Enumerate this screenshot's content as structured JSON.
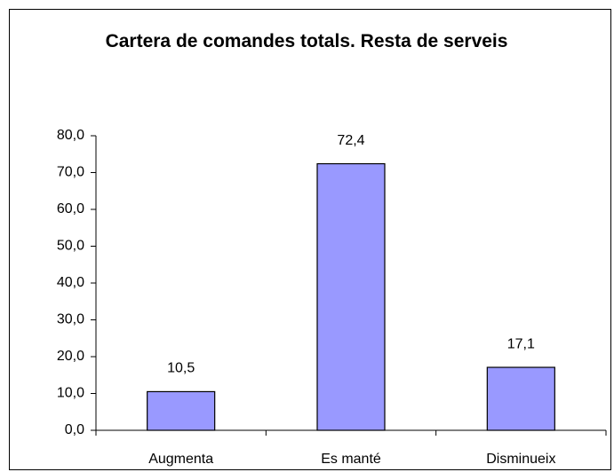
{
  "chart_data": {
    "type": "bar",
    "title": "Cartera de comandes totals. Resta de serveis",
    "categories": [
      "Augmenta",
      "Es manté",
      "Disminueix"
    ],
    "values": [
      10.5,
      72.4,
      17.1
    ],
    "value_labels": [
      "10,5",
      "72,4",
      "17,1"
    ],
    "color": "#9999ff",
    "ylim": [
      0,
      80
    ],
    "yticks": [
      {
        "value": 0,
        "label": "0,0"
      },
      {
        "value": 10,
        "label": "10,0"
      },
      {
        "value": 20,
        "label": "20,0"
      },
      {
        "value": 30,
        "label": "30,0"
      },
      {
        "value": 40,
        "label": "40,0"
      },
      {
        "value": 50,
        "label": "50,0"
      },
      {
        "value": 60,
        "label": "60,0"
      },
      {
        "value": 70,
        "label": "70,0"
      },
      {
        "value": 80,
        "label": "80,0"
      }
    ],
    "grid": false
  }
}
